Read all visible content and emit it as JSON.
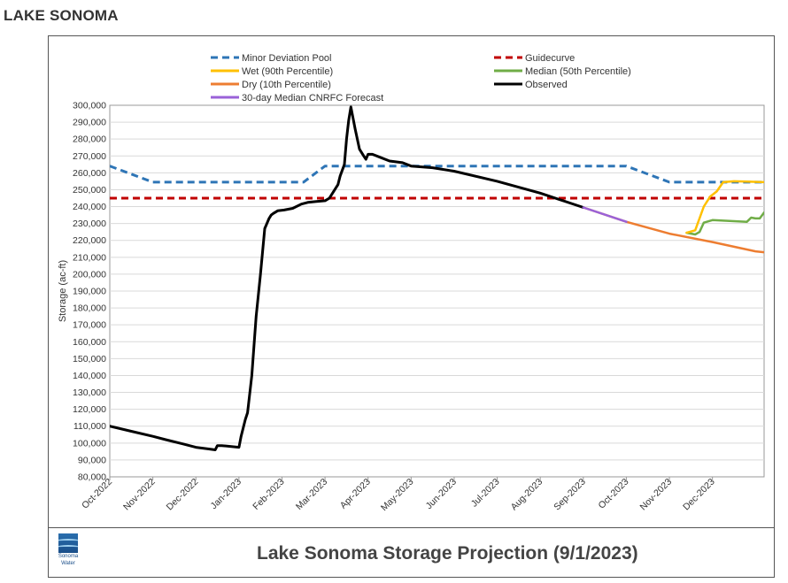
{
  "page": {
    "title": "LAKE SONOMA"
  },
  "footer": {
    "title": "Lake Sonoma Storage Projection (9/1/2023)",
    "logo_line1": "Sonoma",
    "logo_line2": "Water",
    "logo_icon": "sonoma-water-logo-icon"
  },
  "chart_data": {
    "type": "line",
    "title": "Lake Sonoma Storage Projection (9/1/2023)",
    "ylabel": "Storage (ac-ft)",
    "xlabel": "",
    "ylim": [
      80000,
      300000
    ],
    "xlim": [
      0,
      15.2
    ],
    "ytick_step": 10000,
    "categories": [
      "Oct-2022",
      "Nov-2022",
      "Dec-2022",
      "Jan-2023",
      "Feb-2023",
      "Mar-2023",
      "Apr-2023",
      "May-2023",
      "Jun-2023",
      "Jul-2023",
      "Aug-2023",
      "Sep-2023",
      "Oct-2023",
      "Nov-2023",
      "Dec-2023"
    ],
    "x_unit": "months since Oct-2022",
    "legend": "top",
    "series": [
      {
        "name": "Minor Deviation Pool",
        "color": "#2e75b6",
        "dash": "dashed",
        "x": [
          0,
          1,
          4.5,
          5,
          12,
          13,
          15.2
        ],
        "y": [
          264000,
          254500,
          254500,
          264000,
          264000,
          254500,
          254500
        ]
      },
      {
        "name": "Guidecurve",
        "color": "#c00000",
        "dash": "dashed",
        "x": [
          0,
          15.2
        ],
        "y": [
          245000,
          245000
        ]
      },
      {
        "name": "Wet (90th Percentile)",
        "color": "#ffc000",
        "dash": "solid",
        "x": [
          13.4,
          13.6,
          13.8,
          13.95,
          14.1,
          14.25,
          14.5,
          14.8,
          15.2
        ],
        "y": [
          224500,
          226000,
          240000,
          246000,
          249000,
          254500,
          255000,
          254800,
          254500
        ]
      },
      {
        "name": "Median (50th Percentile)",
        "color": "#70ad47",
        "dash": "solid",
        "x": [
          13.4,
          13.6,
          13.7,
          13.8,
          14,
          14.4,
          14.8,
          14.9,
          15,
          15.1,
          15.2
        ],
        "y": [
          224500,
          223500,
          225000,
          230500,
          232000,
          231500,
          231000,
          233500,
          233000,
          233000,
          236500
        ]
      },
      {
        "name": "Dry (10th Percentile)",
        "color": "#ed7d31",
        "dash": "solid",
        "x": [
          11,
          12,
          13,
          14,
          15,
          15.2
        ],
        "y": [
          239500,
          231000,
          224000,
          219000,
          213500,
          213000
        ]
      },
      {
        "name": "Observed",
        "color": "#000000",
        "dash": "solid",
        "x": [
          0,
          0.5,
          1,
          1.3,
          1.7,
          2,
          2.3,
          2.45,
          2.5,
          2.6,
          2.8,
          3.0,
          3.05,
          3.15,
          3.2,
          3.3,
          3.4,
          3.5,
          3.6,
          3.7,
          3.75,
          3.8,
          3.9,
          4.05,
          4.25,
          4.45,
          4.6,
          4.8,
          5.0,
          5.1,
          5.2,
          5.3,
          5.35,
          5.45,
          5.5,
          5.55,
          5.6,
          5.7,
          5.8,
          5.9,
          5.95,
          6.0,
          6.1,
          6.3,
          6.5,
          6.8,
          7.0,
          7.5,
          8.0,
          9.0,
          10.0,
          11.0
        ],
        "y": [
          110000,
          107000,
          104000,
          102000,
          99500,
          97500,
          96500,
          96000,
          98500,
          98500,
          98000,
          97500,
          104000,
          114000,
          118000,
          140000,
          175000,
          200000,
          227000,
          233000,
          235000,
          236000,
          237500,
          238000,
          239000,
          241500,
          242500,
          243000,
          243500,
          245000,
          249000,
          253000,
          258000,
          265000,
          280000,
          291000,
          299000,
          286000,
          274000,
          270000,
          268000,
          271000,
          271000,
          269000,
          267000,
          266000,
          264000,
          263000,
          261000,
          255000,
          248000,
          239500
        ]
      },
      {
        "name": "30-day Median CNRFC Forecast",
        "color": "#9a62d8",
        "dash": "solid",
        "x": [
          11,
          12
        ],
        "y": [
          239500,
          231000
        ]
      }
    ]
  }
}
